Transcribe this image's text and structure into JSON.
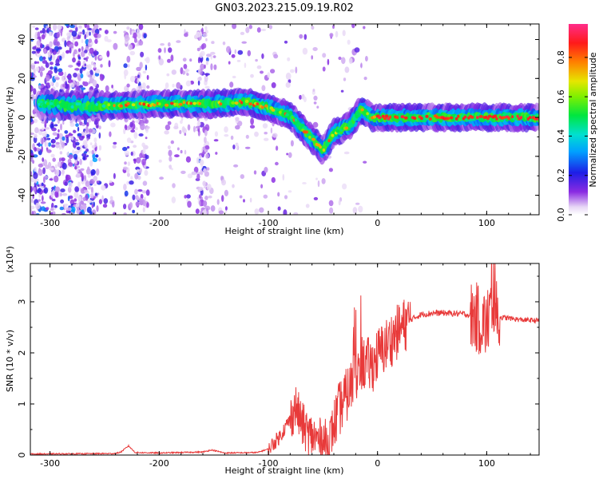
{
  "title": "GN03.2023.215.09.19.R02",
  "chart_data": [
    {
      "type": "heatmap",
      "xlabel": "Height of straight line (km)",
      "ylabel": "Frequency (Hz)",
      "xlim": [
        -318,
        148
      ],
      "ylim": [
        -50,
        48
      ],
      "x_ticks": [
        "-300",
        "-200",
        "-100",
        "0",
        "100"
      ],
      "y_ticks": [
        "40",
        "20",
        "0",
        "-20",
        "-40"
      ],
      "colorbar": {
        "label": "Normalized spectral amplitude",
        "range": [
          0,
          0.97
        ],
        "ticks": [
          "0.0",
          "0.2",
          "0.4",
          "0.6",
          "0.8"
        ]
      },
      "ridge": [
        {
          "x": -310,
          "y": 7
        },
        {
          "x": -280,
          "y": 6
        },
        {
          "x": -250,
          "y": 6
        },
        {
          "x": -200,
          "y": 7
        },
        {
          "x": -150,
          "y": 7
        },
        {
          "x": -120,
          "y": 8
        },
        {
          "x": -100,
          "y": 5
        },
        {
          "x": -80,
          "y": 1
        },
        {
          "x": -65,
          "y": -8
        },
        {
          "x": -50,
          "y": -17
        },
        {
          "x": -40,
          "y": -8
        },
        {
          "x": -25,
          "y": -4
        },
        {
          "x": -15,
          "y": 4
        },
        {
          "x": -5,
          "y": 0
        },
        {
          "x": 0,
          "y": 0
        },
        {
          "x": 148,
          "y": 0
        }
      ]
    },
    {
      "type": "line",
      "xlabel": "Height of straight line (km)",
      "ylabel": "SNR (10 * v/v)",
      "y_multiplier": "(x10⁴)",
      "xlim": [
        -318,
        148
      ],
      "ylim": [
        0,
        3.75
      ],
      "x_ticks": [
        "-300",
        "-200",
        "-100",
        "0",
        "100"
      ],
      "y_ticks": [
        "0",
        "1",
        "2",
        "3"
      ],
      "color": "#e83a3a",
      "x": [
        -318,
        -240,
        -235,
        -228,
        -222,
        -200,
        -160,
        -152,
        -140,
        -110,
        -100,
        -90,
        -80,
        -75,
        -70,
        -65,
        -55,
        -45,
        -35,
        -20,
        -15,
        -5,
        0,
        10,
        20,
        30,
        40,
        50,
        60,
        70,
        80,
        90,
        95,
        100,
        103,
        106,
        110,
        120,
        130,
        148
      ],
      "values": [
        0.02,
        0.03,
        0.06,
        0.18,
        0.05,
        0.04,
        0.06,
        0.1,
        0.04,
        0.05,
        0.12,
        0.35,
        0.7,
        0.95,
        0.65,
        0.45,
        0.3,
        0.25,
        0.9,
        1.5,
        1.8,
        1.75,
        1.95,
        2.2,
        2.45,
        2.65,
        2.75,
        2.78,
        2.78,
        2.77,
        2.76,
        2.7,
        2.6,
        2.55,
        2.75,
        2.8,
        2.7,
        2.68,
        2.65,
        2.63
      ]
    }
  ]
}
